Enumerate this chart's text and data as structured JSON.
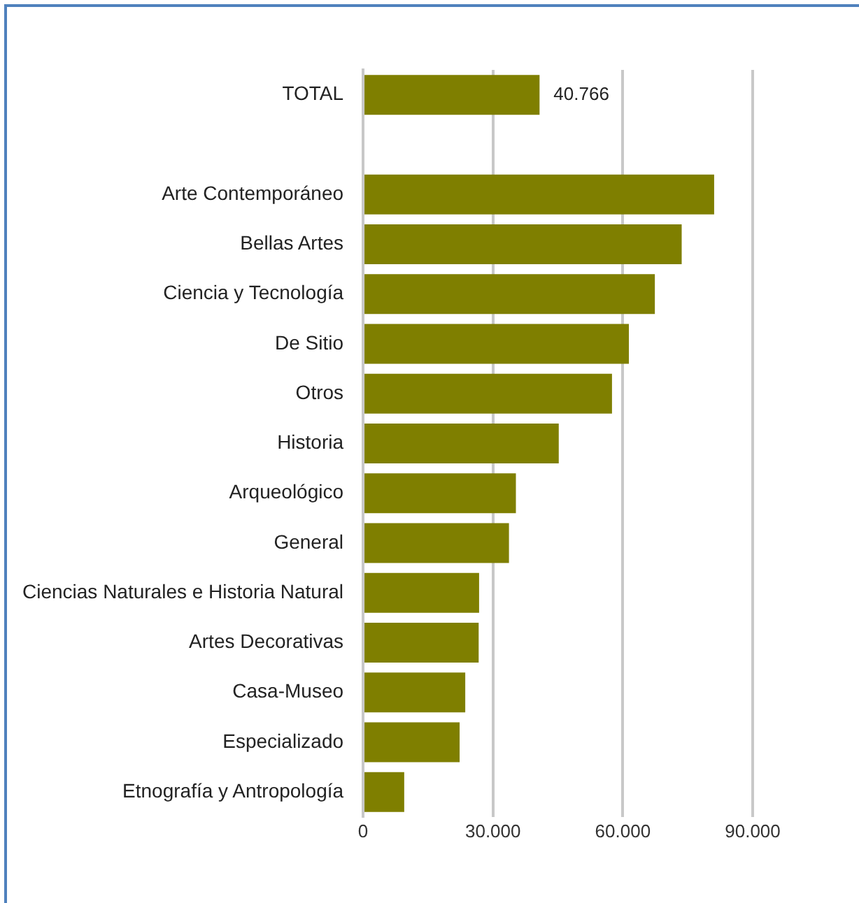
{
  "chart_data": {
    "type": "bar",
    "orientation": "horizontal",
    "categories": [
      "TOTAL",
      null,
      "Arte Contemporáneo",
      "Bellas Artes",
      "Ciencia y Tecnología",
      "De Sitio",
      "Otros",
      "Historia",
      "Arqueológico",
      "General",
      "Ciencias Naturales e Historia Natural",
      "Artes Decorativas",
      "Casa-Museo",
      "Especializado",
      "Etnografía y Antropología"
    ],
    "values": [
      40766,
      null,
      81100,
      73600,
      67400,
      61400,
      57500,
      45200,
      35300,
      33700,
      26800,
      26700,
      23600,
      22300,
      9500
    ],
    "value_labels": [
      "40.766",
      null,
      null,
      null,
      null,
      null,
      null,
      null,
      null,
      null,
      null,
      null,
      null,
      null,
      null
    ],
    "color": "#7f7f00",
    "xlim": [
      0,
      90000
    ],
    "xticks": [
      0,
      {
        "value": 30000,
        "label": "30.000"
      },
      {
        "value": 60000,
        "label": "60.000"
      },
      {
        "value": 90000,
        "label": "90.000"
      }
    ],
    "grid": "x",
    "legend": false
  }
}
